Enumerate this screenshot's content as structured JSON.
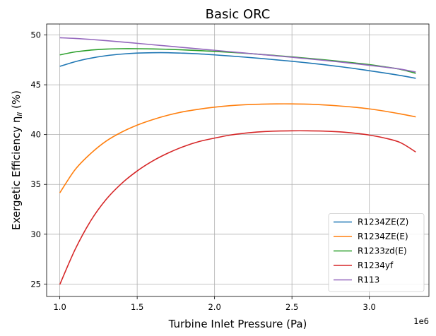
{
  "chart_data": {
    "type": "line",
    "title": "Basic ORC",
    "xlabel": "Turbine Inlet Pressure (Pa)",
    "ylabel_main": "Exergetic Efficiency η",
    "ylabel_sub": "II",
    "ylabel_unit": " (%)",
    "x_offset_label": "1e6",
    "xlim": [
      0.915,
      3.385
    ],
    "ylim": [
      23.75,
      51.1
    ],
    "xticks": [
      1.0,
      1.5,
      2.0,
      2.5,
      3.0
    ],
    "xtick_labels": [
      "1.0",
      "1.5",
      "2.0",
      "2.5",
      "3.0"
    ],
    "yticks": [
      25,
      30,
      35,
      40,
      45,
      50
    ],
    "ytick_labels": [
      "25",
      "30",
      "35",
      "40",
      "45",
      "50"
    ],
    "grid": true,
    "legend_position": "bottom-right",
    "x": [
      1.0,
      1.1,
      1.2,
      1.3,
      1.4,
      1.5,
      1.6,
      1.7,
      1.8,
      1.9,
      2.0,
      2.1,
      2.2,
      2.3,
      2.4,
      2.5,
      2.6,
      2.7,
      2.8,
      2.9,
      3.0,
      3.1,
      3.2,
      3.3
    ],
    "series": [
      {
        "name": "R1234ZE(Z)",
        "color": "#1f77b4",
        "values": [
          46.85,
          47.32,
          47.67,
          47.92,
          48.08,
          48.18,
          48.22,
          48.22,
          48.17,
          48.1,
          48.0,
          47.89,
          47.77,
          47.64,
          47.5,
          47.36,
          47.2,
          47.03,
          46.84,
          46.64,
          46.41,
          46.18,
          45.93,
          45.65
        ]
      },
      {
        "name": "R1234ZE(E)",
        "color": "#ff7f0e",
        "values": [
          34.15,
          36.5,
          38.1,
          39.35,
          40.25,
          40.95,
          41.5,
          41.95,
          42.3,
          42.55,
          42.75,
          42.9,
          43.0,
          43.05,
          43.08,
          43.08,
          43.05,
          42.98,
          42.88,
          42.75,
          42.58,
          42.35,
          42.08,
          41.78
        ]
      },
      {
        "name": "R1233zd(E)",
        "color": "#2ca02c",
        "values": [
          48.0,
          48.3,
          48.48,
          48.58,
          48.62,
          48.62,
          48.6,
          48.56,
          48.5,
          48.43,
          48.35,
          48.26,
          48.16,
          48.05,
          47.93,
          47.8,
          47.66,
          47.52,
          47.37,
          47.2,
          47.02,
          46.8,
          46.55,
          46.15
        ]
      },
      {
        "name": "R1234yf",
        "color": "#d62728",
        "values": [
          24.95,
          28.5,
          31.35,
          33.5,
          35.1,
          36.35,
          37.35,
          38.15,
          38.8,
          39.3,
          39.65,
          39.95,
          40.15,
          40.28,
          40.35,
          40.38,
          40.38,
          40.35,
          40.28,
          40.15,
          39.95,
          39.65,
          39.2,
          38.25
        ]
      },
      {
        "name": "R113",
        "color": "#9467bd",
        "values": [
          49.72,
          49.65,
          49.55,
          49.43,
          49.3,
          49.16,
          49.02,
          48.88,
          48.74,
          48.6,
          48.46,
          48.32,
          48.18,
          48.04,
          47.9,
          47.76,
          47.61,
          47.46,
          47.3,
          47.13,
          46.95,
          46.77,
          46.57,
          46.28
        ]
      }
    ]
  }
}
